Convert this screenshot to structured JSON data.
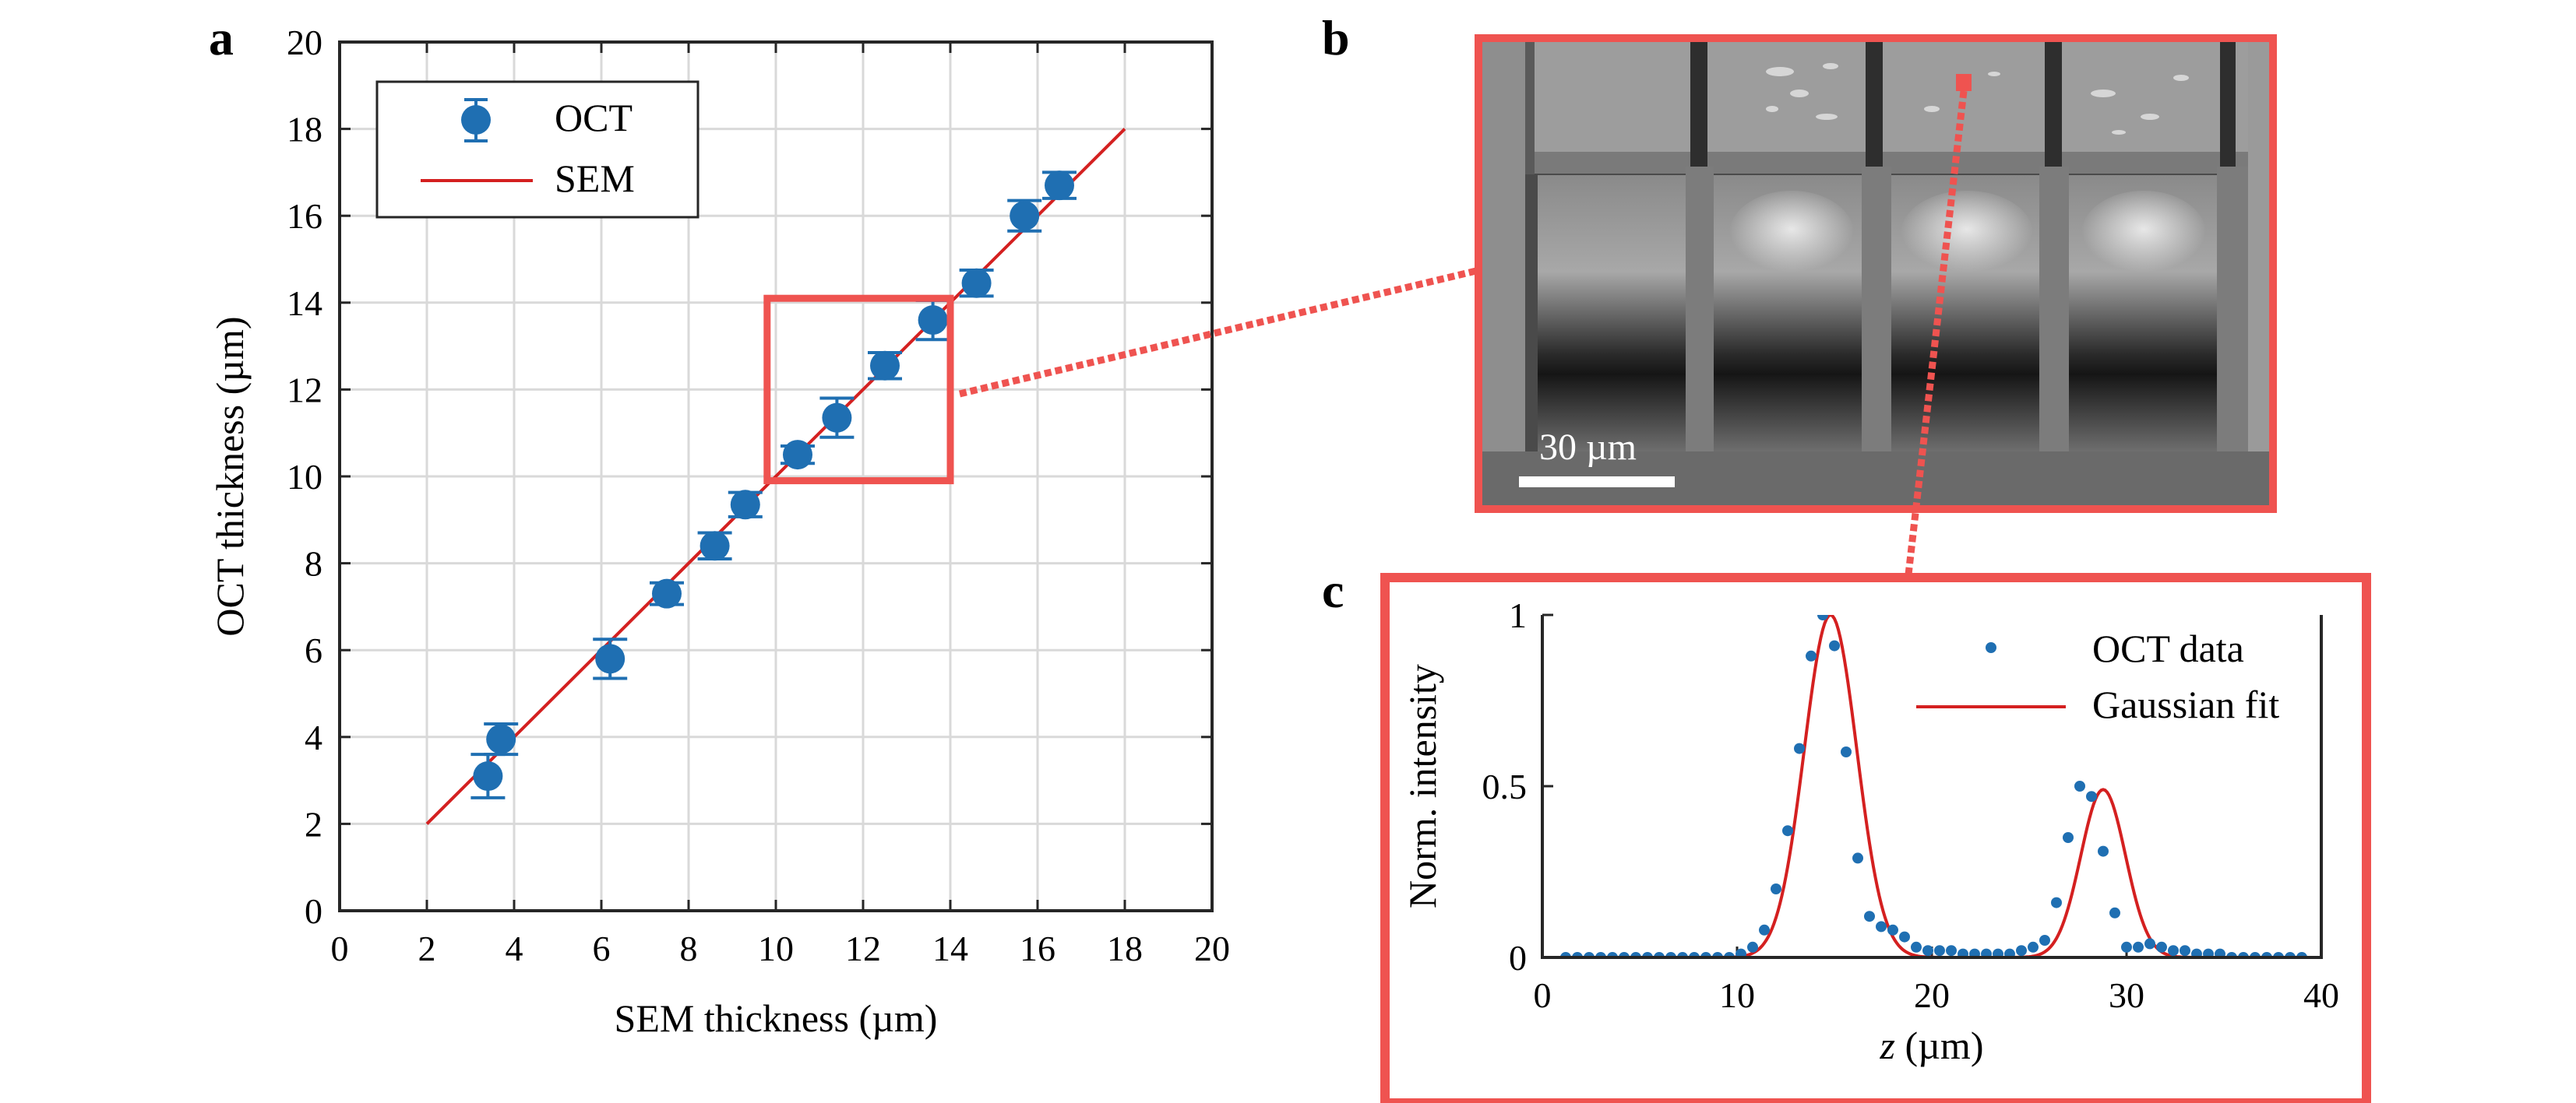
{
  "panels": {
    "a": "a",
    "b": "b",
    "c": "c"
  },
  "colors": {
    "marker": "#1f6fb2",
    "fit_line": "#d42020",
    "highlight": "#ef5350",
    "grid": "#d9d9d9"
  },
  "chart_data": [
    {
      "panel": "a",
      "type": "scatter",
      "xlabel": "SEM thickness (µm)",
      "ylabel": "OCT thickness (µm)",
      "xlim": [
        0,
        20
      ],
      "ylim": [
        0,
        20
      ],
      "xticks": [
        "0",
        "2",
        "4",
        "6",
        "8",
        "10",
        "12",
        "14",
        "16",
        "18",
        "20"
      ],
      "yticks": [
        "0",
        "2",
        "4",
        "6",
        "8",
        "10",
        "12",
        "14",
        "16",
        "18",
        "20"
      ],
      "grid": true,
      "legend_position": "top-left",
      "legend": [
        "OCT",
        "SEM"
      ],
      "series": [
        {
          "name": "OCT",
          "kind": "errorbar-markers",
          "x": [
            3.4,
            3.7,
            6.2,
            7.5,
            8.6,
            9.3,
            10.5,
            11.4,
            12.5,
            13.6,
            14.6,
            15.7,
            16.5
          ],
          "y": [
            3.1,
            3.95,
            5.8,
            7.3,
            8.4,
            9.35,
            10.5,
            11.35,
            12.55,
            13.6,
            14.45,
            16.0,
            16.7
          ],
          "err": [
            0.5,
            0.35,
            0.45,
            0.25,
            0.3,
            0.28,
            0.2,
            0.45,
            0.3,
            0.45,
            0.3,
            0.35,
            0.3
          ]
        },
        {
          "name": "SEM",
          "kind": "line",
          "x": [
            2,
            18
          ],
          "y": [
            2,
            18
          ]
        }
      ],
      "zoom_box": {
        "x": [
          9.8,
          14.0
        ],
        "y": [
          9.9,
          14.1
        ]
      }
    },
    {
      "panel": "c",
      "type": "scatter",
      "xlabel_italic": "z",
      "xlabel_rest": " (µm)",
      "ylabel": "Norm. intensity",
      "xlim": [
        0,
        40
      ],
      "ylim": [
        0,
        1
      ],
      "xticks": [
        "0",
        "10",
        "20",
        "30",
        "40"
      ],
      "yticks": [
        "0",
        "0.5",
        "1"
      ],
      "grid": false,
      "legend_position": "top-right",
      "legend": [
        "OCT data",
        "Gaussian fit"
      ],
      "series": [
        {
          "name": "OCT data",
          "kind": "dots",
          "x": [
            1.2,
            1.8,
            2.4,
            3.0,
            3.6,
            4.2,
            4.8,
            5.4,
            6.0,
            6.6,
            7.2,
            7.8,
            8.4,
            9.0,
            9.6,
            10.2,
            10.8,
            11.4,
            12.0,
            12.6,
            13.2,
            13.8,
            14.4,
            15.0,
            15.6,
            16.2,
            16.8,
            17.4,
            18.0,
            18.6,
            19.2,
            19.8,
            20.4,
            21.0,
            21.6,
            22.2,
            22.8,
            23.4,
            24.0,
            24.6,
            25.2,
            25.8,
            26.4,
            27.0,
            27.6,
            28.2,
            28.8,
            29.4,
            30.0,
            30.6,
            31.2,
            31.8,
            32.4,
            33.0,
            33.6,
            34.2,
            34.8,
            35.4,
            36.0,
            36.6,
            37.2,
            37.8,
            38.4,
            39.0
          ],
          "y": [
            0.0,
            0.0,
            0.0,
            0.0,
            0.0,
            0.0,
            0.0,
            0.0,
            0.0,
            0.0,
            0.0,
            0.0,
            0.0,
            0.0,
            0.0,
            0.01,
            0.03,
            0.08,
            0.2,
            0.37,
            0.61,
            0.88,
            1.0,
            0.91,
            0.6,
            0.29,
            0.12,
            0.09,
            0.08,
            0.06,
            0.03,
            0.02,
            0.02,
            0.02,
            0.01,
            0.01,
            0.01,
            0.01,
            0.01,
            0.02,
            0.03,
            0.05,
            0.16,
            0.35,
            0.5,
            0.47,
            0.31,
            0.13,
            0.03,
            0.03,
            0.04,
            0.03,
            0.02,
            0.02,
            0.01,
            0.01,
            0.01,
            0.0,
            0.0,
            0.0,
            0.0,
            0.0,
            0.0,
            0.0
          ]
        },
        {
          "name": "Gaussian fit",
          "kind": "line",
          "components": [
            {
              "amplitude": 1.0,
              "center": 14.8,
              "sigma": 1.35
            },
            {
              "amplitude": 0.49,
              "center": 28.8,
              "sigma": 1.15
            }
          ]
        }
      ]
    }
  ],
  "sem_image": {
    "scale_bar_label": "30 µm"
  }
}
